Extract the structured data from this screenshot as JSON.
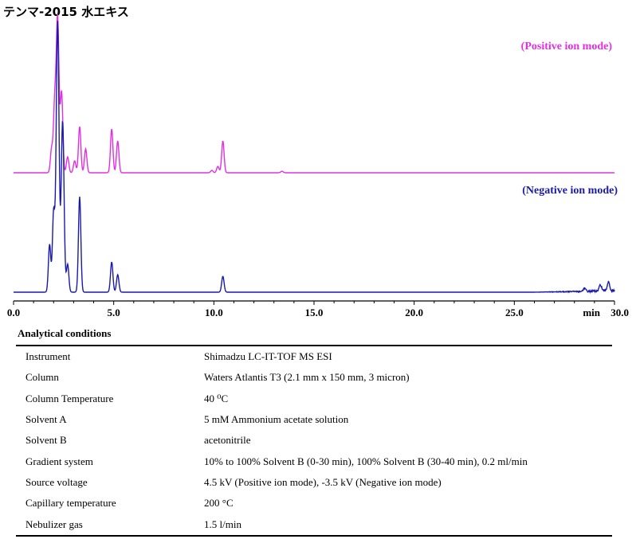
{
  "title": "テンマ-2015 水エキス",
  "chart_data": {
    "type": "line",
    "xlim": [
      0,
      30
    ],
    "x_unit": "min",
    "x_ticks": [
      "0.0",
      "5.0",
      "10.0",
      "15.0",
      "20.0",
      "25.0",
      "30.0"
    ],
    "series": [
      {
        "name": "(Positive ion mode)",
        "color": "#e030e0",
        "baseline": 0,
        "peaks": [
          [
            1.9,
            30
          ],
          [
            2.05,
            80
          ],
          [
            2.2,
            195
          ],
          [
            2.4,
            100
          ],
          [
            2.7,
            20
          ],
          [
            3.05,
            15
          ],
          [
            3.3,
            58
          ],
          [
            3.6,
            30
          ],
          [
            4.9,
            55
          ],
          [
            5.2,
            40
          ],
          [
            9.9,
            3
          ],
          [
            10.2,
            8
          ],
          [
            10.45,
            40
          ],
          [
            13.4,
            2
          ]
        ]
      },
      {
        "name": "(Negative ion mode)",
        "color": "#1a1aaa",
        "baseline": 0,
        "peaks": [
          [
            1.8,
            60
          ],
          [
            2.0,
            100
          ],
          [
            2.2,
            340
          ],
          [
            2.45,
            215
          ],
          [
            2.7,
            35
          ],
          [
            3.3,
            120
          ],
          [
            4.9,
            38
          ],
          [
            5.2,
            22
          ],
          [
            10.45,
            20
          ],
          [
            28.5,
            4
          ],
          [
            29.3,
            8
          ],
          [
            29.7,
            12
          ]
        ]
      }
    ]
  },
  "conditions": {
    "heading": "Analytical conditions",
    "rows": [
      {
        "param": "Instrument",
        "value": "Shimadzu LC-IT-TOF MS ESI"
      },
      {
        "param": "Column",
        "value": "Waters Atlantis T3 (2.1 mm x 150 mm, 3 micron)"
      },
      {
        "param": "Column Temperature",
        "value": "40 ⁰C"
      },
      {
        "param": "Solvent A",
        "value": "5 mM Ammonium acetate solution"
      },
      {
        "param": "Solvent B",
        "value": "acetonitrile"
      },
      {
        "param": "Gradient system",
        "value": "10% to 100% Solvent B (0-30 min), 100% Solvent B (30-40 min), 0.2 ml/min"
      },
      {
        "param": "Source voltage",
        "value": "4.5 kV (Positive ion mode), -3.5 kV (Negative ion mode)"
      },
      {
        "param": "Capillary temperature",
        "value": "200 °C"
      },
      {
        "param": "Nebulizer gas",
        "value": "1.5 l/min"
      }
    ]
  }
}
